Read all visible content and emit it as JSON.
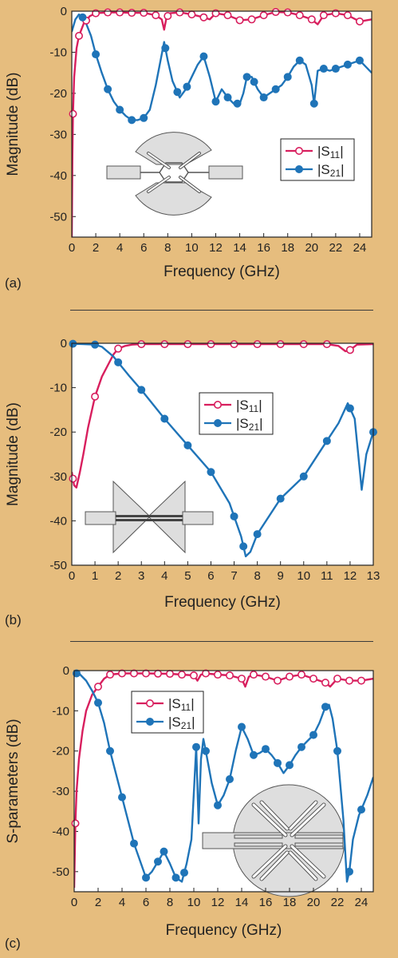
{
  "colors": {
    "s11": "#d81f5e",
    "s21": "#1f74b8",
    "background": "#e6bd7e",
    "plot_bg": "#ffffff",
    "inset_fill": "#dedede",
    "inset_stroke": "#555555"
  },
  "chart_data": [
    {
      "type": "line",
      "panel_label": "(a)",
      "xlabel": "Frequency (GHz)",
      "ylabel": "Magnitude (dB)",
      "xlim": [
        0,
        25
      ],
      "ylim": [
        -55,
        0
      ],
      "xticks": [
        0,
        2,
        4,
        6,
        8,
        10,
        12,
        14,
        16,
        18,
        20,
        22,
        24
      ],
      "yticks": [
        0,
        -10,
        -20,
        -30,
        -40,
        -50
      ],
      "legend_position": "center-right",
      "series": [
        {
          "name": "|S11|",
          "sub": "11",
          "marker": "open-circle",
          "x": [
            0,
            0.05,
            0.1,
            0.2,
            0.4,
            0.6,
            1.0,
            1.5,
            2.0,
            3.0,
            4.0,
            5.0,
            6.0,
            7.0,
            7.5,
            7.7,
            7.9,
            8.2,
            9.0,
            10.0,
            11.0,
            11.5,
            12.0,
            13.0,
            14.0,
            15.0,
            16.0,
            17.0,
            18.0,
            19.0,
            20.0,
            20.5,
            21.0,
            22.0,
            23.0,
            24.0,
            25.0
          ],
          "y": [
            -55,
            -35,
            -25,
            -16,
            -9,
            -6,
            -3,
            -1.2,
            -0.5,
            -0.3,
            -0.3,
            -0.4,
            -0.4,
            -1.0,
            -2.0,
            -4.5,
            -1.5,
            -0.5,
            -0.3,
            -0.8,
            -1.5,
            -2.0,
            -0.5,
            -1.0,
            -2.2,
            -2.0,
            -1.0,
            -0.2,
            -0.3,
            -1.0,
            -2.0,
            -3.2,
            -1.0,
            -0.5,
            -1.0,
            -2.5,
            -2.0
          ],
          "marker_x": [
            0.1,
            0.6,
            1.2,
            2.0,
            3.0,
            4.0,
            5.0,
            6.0,
            7.0,
            8.0,
            9.0,
            10.0,
            11.0,
            12.0,
            13.0,
            14.0,
            15.0,
            16.0,
            17.0,
            18.0,
            19.0,
            20.0,
            21.0,
            22.0,
            23.0,
            24.0
          ]
        },
        {
          "name": "|S21|",
          "sub": "21",
          "marker": "filled-circle",
          "x": [
            0,
            0.3,
            0.6,
            0.9,
            1.2,
            1.6,
            2.0,
            2.5,
            3.0,
            3.5,
            4.0,
            4.5,
            5.0,
            5.5,
            6.0,
            6.5,
            7.0,
            7.4,
            7.7,
            8.0,
            8.4,
            9.0,
            9.5,
            10.0,
            10.5,
            11.0,
            11.5,
            12.0,
            12.5,
            13.0,
            13.5,
            14.0,
            14.3,
            14.6,
            15.0,
            15.5,
            16.0,
            16.5,
            17.0,
            17.5,
            18.0,
            18.5,
            19.0,
            19.5,
            20.0,
            20.2,
            20.5,
            21.0,
            21.5,
            22.0,
            23.0,
            24.0,
            25.0
          ],
          "y": [
            -5,
            -2,
            -0.8,
            -1.5,
            -3,
            -6,
            -10.5,
            -15,
            -19,
            -22,
            -24,
            -25.5,
            -26.5,
            -26.5,
            -26,
            -24,
            -18,
            -12,
            -7.5,
            -12,
            -17,
            -21,
            -19,
            -16,
            -13,
            -11,
            -16,
            -22,
            -19,
            -21,
            -22.5,
            -22.5,
            -20,
            -16,
            -16,
            -19,
            -21,
            -20,
            -19,
            -18,
            -16,
            -13.5,
            -12,
            -13,
            -18,
            -22.5,
            -14.5,
            -14,
            -14.5,
            -14,
            -13,
            -12,
            -15
          ],
          "marker_x": [
            0.9,
            2.0,
            3.0,
            4.0,
            5.0,
            6.0,
            7.8,
            8.8,
            9.6,
            11.0,
            12.0,
            13.0,
            13.8,
            14.6,
            15.2,
            16.0,
            17.0,
            18.0,
            19.0,
            20.2,
            21.0,
            22.0,
            23.0,
            24.0
          ]
        }
      ]
    },
    {
      "type": "line",
      "panel_label": "(b)",
      "xlabel": "Frequency (GHz)",
      "ylabel": "Magnitude (dB)",
      "xlim": [
        0,
        13
      ],
      "ylim": [
        -50,
        0
      ],
      "xticks": [
        0,
        1,
        2,
        3,
        4,
        5,
        6,
        7,
        8,
        9,
        10,
        11,
        12,
        13
      ],
      "yticks": [
        0,
        -10,
        -20,
        -30,
        -40,
        -50
      ],
      "legend_position": "center",
      "series": [
        {
          "name": "|S11|",
          "sub": "11",
          "marker": "open-circle",
          "x": [
            0,
            0.1,
            0.2,
            0.35,
            0.5,
            0.7,
            1.0,
            1.3,
            1.6,
            1.8,
            2.0,
            2.3,
            2.6,
            3.0,
            4.0,
            5.0,
            6.0,
            7.0,
            8.0,
            9.0,
            10.0,
            11.0,
            11.5,
            11.8,
            12.0,
            12.3,
            13.0
          ],
          "y": [
            -29,
            -32,
            -32.5,
            -29,
            -25,
            -19,
            -12,
            -7.5,
            -4.5,
            -2.5,
            -1.2,
            -0.6,
            -0.3,
            -0.2,
            -0.2,
            -0.2,
            -0.2,
            -0.2,
            -0.2,
            -0.2,
            -0.2,
            -0.2,
            -0.6,
            -1.8,
            -1.5,
            -0.3,
            -0.2
          ],
          "marker_x": [
            0.05,
            1.0,
            2.0,
            3.0,
            4.0,
            5.0,
            6.0,
            7.0,
            8.0,
            9.0,
            10.0,
            11.0,
            12.0
          ]
        },
        {
          "name": "|S21|",
          "sub": "21",
          "marker": "filled-circle",
          "x": [
            0,
            0.5,
            1.0,
            1.3,
            1.8,
            2.5,
            3.0,
            4.0,
            5.0,
            6.0,
            6.8,
            7.3,
            7.5,
            7.7,
            8.0,
            9.0,
            10.0,
            11.0,
            11.5,
            11.9,
            12.2,
            12.5,
            12.7,
            13.0
          ],
          "y": [
            -0.1,
            -0.2,
            -0.3,
            -0.8,
            -3,
            -7.5,
            -10.5,
            -17,
            -23,
            -29,
            -36,
            -43.5,
            -48,
            -47,
            -43,
            -35,
            -30,
            -22,
            -18,
            -13.5,
            -17,
            -33,
            -25,
            -20
          ],
          "marker_x": [
            0.05,
            1.0,
            2.0,
            3.0,
            4.0,
            5.0,
            6.0,
            7.0,
            7.4,
            8.0,
            9.0,
            10.0,
            11.0,
            12.0,
            13.0
          ]
        }
      ]
    },
    {
      "type": "line",
      "panel_label": "(c)",
      "xlabel": "Frequency (GHz)",
      "ylabel": "S-parameters (dB)",
      "xlim": [
        0,
        25
      ],
      "ylim": [
        -55,
        0
      ],
      "xticks": [
        0,
        2,
        4,
        6,
        8,
        10,
        12,
        14,
        16,
        18,
        20,
        22,
        24
      ],
      "yticks": [
        0,
        -10,
        -20,
        -30,
        -40,
        -50
      ],
      "legend_position": "top-left",
      "series": [
        {
          "name": "|S11|",
          "sub": "11",
          "marker": "open-circle",
          "x": [
            0,
            0.1,
            0.2,
            0.4,
            0.7,
            1.0,
            1.5,
            2.0,
            2.5,
            3.0,
            4.0,
            6.0,
            8.0,
            10.0,
            10.3,
            10.6,
            11.0,
            12.0,
            13.0,
            14.0,
            14.3,
            14.6,
            15.0,
            16.0,
            17.0,
            18.0,
            19.0,
            20.0,
            21.0,
            21.4,
            22.0,
            23.0,
            24.0,
            25.0
          ],
          "y": [
            -54,
            -38,
            -30,
            -22,
            -15,
            -10,
            -6,
            -4,
            -2,
            -1,
            -0.7,
            -0.7,
            -0.8,
            -1.2,
            -2.5,
            -1.0,
            -0.7,
            -1.0,
            -1.2,
            -2.0,
            -4.0,
            -1.5,
            -1.0,
            -1.5,
            -2.5,
            -1.5,
            -1.0,
            -2.0,
            -3.0,
            -4.0,
            -2.0,
            -2.5,
            -2.5,
            -2.0
          ],
          "marker_x": [
            0.1,
            2.0,
            3.0,
            4.0,
            5.0,
            6.0,
            7.0,
            8.0,
            9.0,
            10.0,
            11.0,
            12.0,
            13.0,
            14.0,
            15.0,
            16.0,
            17.0,
            18.0,
            19.0,
            20.0,
            21.0,
            22.0,
            23.0,
            24.0
          ]
        },
        {
          "name": "|S21|",
          "sub": "21",
          "marker": "filled-circle",
          "x": [
            0,
            0.5,
            1.0,
            1.5,
            2.0,
            2.5,
            3.0,
            4.0,
            5.0,
            6.0,
            6.5,
            7.0,
            7.5,
            8.0,
            8.5,
            9.0,
            9.4,
            9.8,
            10.2,
            10.4,
            10.6,
            10.8,
            11.0,
            11.5,
            12.0,
            12.5,
            13.0,
            13.5,
            14.0,
            14.5,
            15.0,
            15.5,
            16.0,
            16.5,
            17.0,
            17.5,
            18.0,
            18.5,
            19.0,
            19.5,
            20.0,
            20.5,
            21.0,
            21.3,
            21.6,
            22.0,
            22.5,
            22.8,
            23.0,
            23.3,
            23.8,
            24.5,
            25.0
          ],
          "y": [
            -0.5,
            -1,
            -2.5,
            -5,
            -8,
            -13,
            -20,
            -31.5,
            -43,
            -51.5,
            -50,
            -47.5,
            -45,
            -48,
            -51.5,
            -52.5,
            -48,
            -42,
            -19,
            -38,
            -22,
            -17,
            -20,
            -28,
            -33.5,
            -31,
            -27,
            -20,
            -14,
            -17,
            -21,
            -20.5,
            -19.5,
            -21,
            -23,
            -25.5,
            -23.5,
            -21,
            -19,
            -17.5,
            -16,
            -13,
            -9,
            -8.5,
            -12,
            -20,
            -37,
            -52.5,
            -50,
            -42,
            -36,
            -31,
            -26.5
          ],
          "marker_x": [
            0.2,
            2.0,
            3.0,
            4.0,
            5.0,
            6.0,
            7.0,
            7.5,
            8.5,
            9.2,
            10.2,
            11.0,
            12.0,
            13.0,
            14.0,
            15.0,
            16.0,
            17.0,
            18.0,
            19.0,
            20.0,
            21.0,
            22.0,
            23.0,
            24.0
          ]
        }
      ]
    }
  ]
}
